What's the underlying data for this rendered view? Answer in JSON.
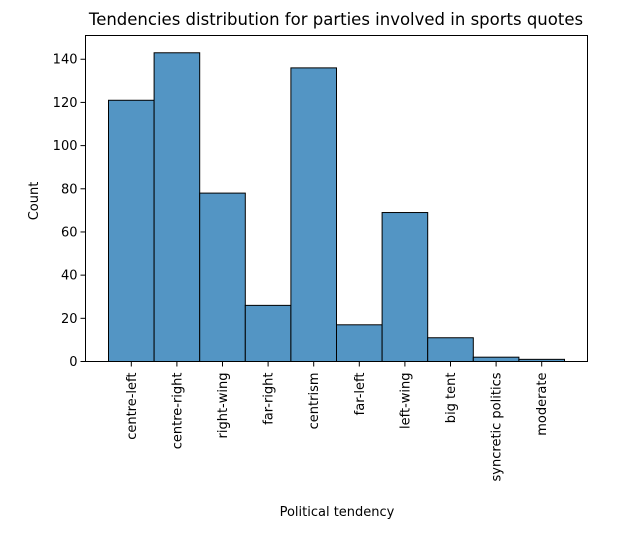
{
  "chart_data": {
    "type": "bar",
    "title": "Tendencies distribution for parties involved in sports quotes",
    "xlabel": "Political tendency",
    "ylabel": "Count",
    "categories": [
      "centre-left",
      "centre-right",
      "right-wing",
      "far-right",
      "centrism",
      "far-left",
      "left-wing",
      "big tent",
      "syncretic politics",
      "moderate"
    ],
    "values": [
      121,
      143,
      78,
      26,
      136,
      17,
      69,
      11,
      2,
      1
    ],
    "ylim": [
      0,
      151
    ],
    "yticks": [
      0,
      20,
      40,
      60,
      80,
      100,
      120,
      140
    ],
    "grid": false,
    "bar_color": "#5395c4",
    "edge_color": "#000000"
  }
}
